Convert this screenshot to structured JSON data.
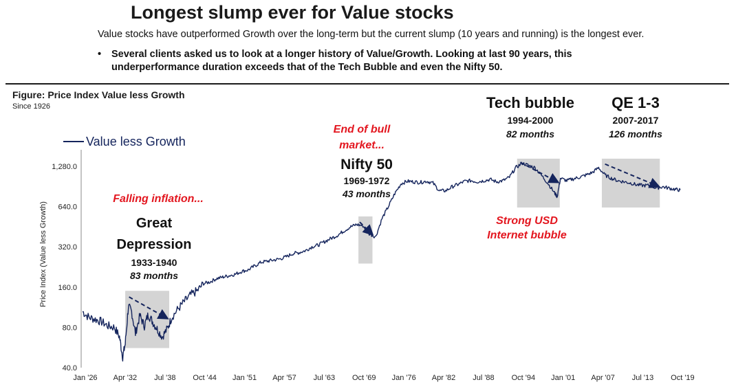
{
  "header": {
    "title": "Longest slump ever for Value stocks",
    "subtitle": "Value stocks have outperformed Growth over the long-term but the current slump (10 years and running) is the longest ever.",
    "bullet_symbol": "•",
    "bullet_line1": "Several clients asked us to look at a longer history of Value/Growth.  Looking at last 90 years, this",
    "bullet_line2": "underperformance duration exceeds that of the Tech Bubble and even the Nifty 50."
  },
  "figure": {
    "title": "Figure: Price Index Value less Growth",
    "subtitle": "Since 1926"
  },
  "chart_data": {
    "type": "line",
    "title": "Price Index Value less Growth",
    "xlabel": "",
    "ylabel": "Price Index (Value less Growth)",
    "yscale": "log2",
    "ylim": [
      40,
      1800
    ],
    "xlim": [
      1926.0,
      2021.0
    ],
    "yticks": [
      40,
      80,
      160,
      320,
      640,
      1280
    ],
    "ytick_labels": [
      "40.0",
      "80.0",
      "160.0",
      "320.0",
      "640.0",
      "1,280.0"
    ],
    "xticks": [
      1926.0,
      1932.25,
      1938.5,
      1944.75,
      1951.0,
      1957.25,
      1963.5,
      1969.75,
      1976.0,
      1982.25,
      1988.5,
      1994.75,
      2001.0,
      2007.25,
      2013.5,
      2019.75
    ],
    "xtick_labels": [
      "Jan '26",
      "Apr '32",
      "Jul '38",
      "Oct '44",
      "Jan '51",
      "Apr '57",
      "Jul '63",
      "Oct '69",
      "Jan '76",
      "Apr '82",
      "Jul '88",
      "Oct '94",
      "Jan '01",
      "Apr '07",
      "Jul '13",
      "Oct '19"
    ],
    "grid": false,
    "legend": {
      "position": "top-left",
      "entries": [
        "Value less Growth"
      ]
    },
    "series": [
      {
        "name": "Value less Growth",
        "color": "#14245c",
        "x": [
          1926.0,
          1927.0,
          1928.0,
          1929.0,
          1930.0,
          1931.0,
          1931.8,
          1932.3,
          1932.7,
          1933.2,
          1933.7,
          1934.3,
          1935.0,
          1935.7,
          1936.3,
          1937.0,
          1937.7,
          1938.5,
          1939.3,
          1940.0,
          1941.0,
          1942.0,
          1943.0,
          1944.0,
          1945.0,
          1946.0,
          1947.0,
          1948.0,
          1949.0,
          1950.0,
          1951.0,
          1952.0,
          1953.0,
          1954.0,
          1955.0,
          1956.0,
          1957.0,
          1958.0,
          1959.0,
          1960.0,
          1961.0,
          1962.0,
          1963.0,
          1964.0,
          1965.0,
          1966.0,
          1967.0,
          1968.0,
          1969.0,
          1970.0,
          1971.0,
          1972.0,
          1973.0,
          1974.0,
          1975.0,
          1976.0,
          1977.0,
          1978.0,
          1979.0,
          1980.0,
          1981.0,
          1982.0,
          1983.0,
          1984.0,
          1985.0,
          1986.0,
          1987.0,
          1988.0,
          1989.0,
          1990.0,
          1991.0,
          1992.0,
          1993.0,
          1994.0,
          1995.0,
          1996.0,
          1997.0,
          1998.0,
          1999.0,
          2000.0,
          2000.5,
          2001.0,
          2002.0,
          2003.0,
          2004.0,
          2005.0,
          2006.0,
          2007.0,
          2008.0,
          2009.0,
          2010.0,
          2011.0,
          2012.0,
          2013.0,
          2014.0,
          2015.0,
          2016.0,
          2017.0,
          2018.0,
          2019.0,
          2019.8
        ],
        "values": [
          105,
          95,
          92,
          88,
          82,
          80,
          68,
          48,
          60,
          115,
          105,
          72,
          98,
          82,
          100,
          88,
          78,
          68,
          78,
          95,
          110,
          125,
          140,
          150,
          170,
          175,
          185,
          190,
          195,
          200,
          210,
          215,
          230,
          245,
          250,
          255,
          260,
          270,
          285,
          290,
          300,
          320,
          330,
          350,
          370,
          390,
          420,
          450,
          470,
          460,
          400,
          380,
          520,
          640,
          800,
          950,
          990,
          980,
          970,
          990,
          960,
          840,
          840,
          900,
          940,
          990,
          1000,
          980,
          1000,
          1020,
          980,
          1000,
          1060,
          1250,
          1350,
          1300,
          1250,
          1100,
          960,
          820,
          760,
          1040,
          1000,
          1030,
          1060,
          1100,
          1150,
          1250,
          1100,
          1040,
          1000,
          980,
          960,
          930,
          920,
          920,
          880,
          900,
          880,
          860,
          850
        ]
      }
    ],
    "annotations": [
      {
        "type": "shaded",
        "x_range": [
          1932.7,
          1939.6
        ],
        "y_range": [
          56,
          150
        ]
      },
      {
        "type": "shaded",
        "x_range": [
          1969.3,
          1971.5
        ],
        "y_range": [
          240,
          540
        ]
      },
      {
        "type": "shaded",
        "x_range": [
          1994.2,
          2000.9
        ],
        "y_range": [
          630,
          1460
        ]
      },
      {
        "type": "shaded",
        "x_range": [
          2007.5,
          2016.6
        ],
        "y_range": [
          630,
          1460
        ]
      },
      {
        "type": "arrow",
        "from": [
          1933.3,
          135
        ],
        "to": [
          1939.2,
          94
        ]
      },
      {
        "type": "arrow",
        "from": [
          1969.5,
          490
        ],
        "to": [
          1971.4,
          400
        ]
      },
      {
        "type": "arrow",
        "from": [
          1994.7,
          1370
        ],
        "to": [
          2000.5,
          980
        ]
      },
      {
        "type": "arrow",
        "from": [
          2008.0,
          1330
        ],
        "to": [
          2016.3,
          910
        ]
      },
      {
        "type": "text",
        "text": "Falling inflation...",
        "color": "#e3161f",
        "style": "bold-italic"
      },
      {
        "type": "text",
        "text": "Great",
        "color": "#111111",
        "style": "bold"
      },
      {
        "type": "text",
        "text": "Depression",
        "color": "#111111",
        "style": "bold"
      },
      {
        "type": "text",
        "text": "1933-1940",
        "color": "#111111",
        "style": "bold"
      },
      {
        "type": "text",
        "text": "83 months",
        "color": "#111111",
        "style": "bold-italic"
      },
      {
        "type": "text",
        "text": "End of bull",
        "color": "#e3161f",
        "style": "bold-italic"
      },
      {
        "type": "text",
        "text": "market...",
        "color": "#e3161f",
        "style": "bold-italic"
      },
      {
        "type": "text",
        "text": "Nifty 50",
        "color": "#111111",
        "style": "bold"
      },
      {
        "type": "text",
        "text": "1969-1972",
        "color": "#111111",
        "style": "bold"
      },
      {
        "type": "text",
        "text": "43 months",
        "color": "#111111",
        "style": "bold-italic"
      },
      {
        "type": "text",
        "text": "Tech bubble",
        "color": "#111111",
        "style": "bold"
      },
      {
        "type": "text",
        "text": "1994-2000",
        "color": "#111111",
        "style": "bold"
      },
      {
        "type": "text",
        "text": "82 months",
        "color": "#111111",
        "style": "bold-italic"
      },
      {
        "type": "text",
        "text": "Strong USD",
        "color": "#e3161f",
        "style": "bold-italic"
      },
      {
        "type": "text",
        "text": "Internet bubble",
        "color": "#e3161f",
        "style": "bold-italic"
      },
      {
        "type": "text",
        "text": "QE 1-3",
        "color": "#111111",
        "style": "bold"
      },
      {
        "type": "text",
        "text": "2007-2017",
        "color": "#111111",
        "style": "bold"
      },
      {
        "type": "text",
        "text": "126 months",
        "color": "#111111",
        "style": "bold-italic"
      }
    ]
  }
}
